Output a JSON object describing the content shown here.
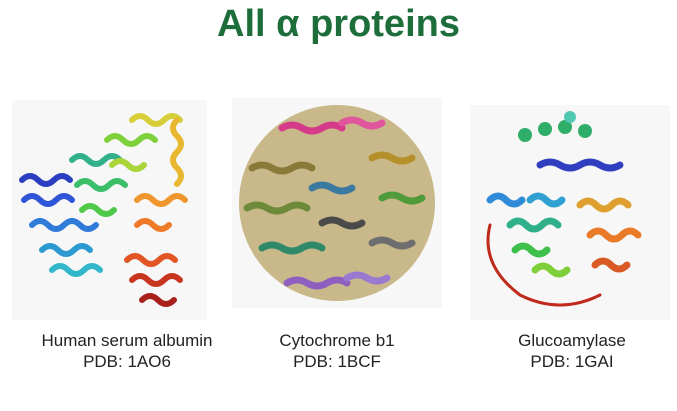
{
  "slide": {
    "title": "All α proteins",
    "title_color": "#1e6e3c"
  },
  "proteins": [
    {
      "name": "Human serum albumin",
      "pdb": "PDB: 1AO6",
      "icon": "alpha-helical-structure-rainbow"
    },
    {
      "name": "Cytochrome b1",
      "pdb": "PDB: 1BCF",
      "icon": "spherical-protein-cage"
    },
    {
      "name": "Glucoamylase",
      "pdb": "PDB: 1GAI",
      "icon": "alpha-barrel-structure-with-sugar-chain"
    }
  ]
}
